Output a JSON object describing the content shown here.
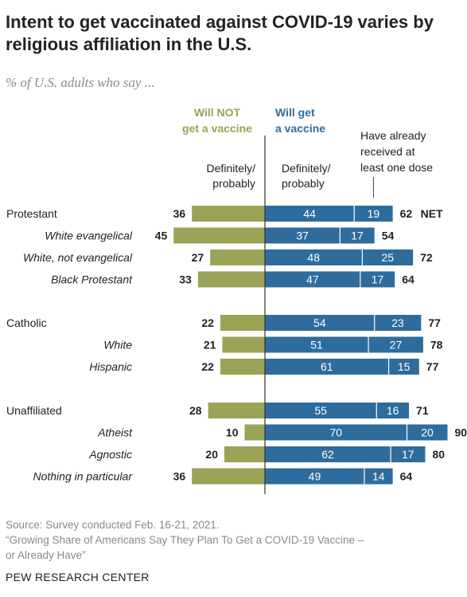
{
  "title": "Intent to get vaccinated against COVID-19 varies by religious affiliation in the U.S.",
  "subtitle": "% of U.S. adults who say ...",
  "chart_data": {
    "type": "bar",
    "headers": {
      "will_not_line1": "Will NOT",
      "will_not_line2": "get a vaccine",
      "will_get_line1": "Will get",
      "will_get_line2": "a vaccine",
      "received_line1": "Have already",
      "received_line2": "received at",
      "received_line3": "least one dose",
      "def_left_line1": "Definitely/",
      "def_left_line2": "probably",
      "def_right_line1": "Definitely/",
      "def_right_line2": "probably",
      "net_label": "NET"
    },
    "colors": {
      "will_not": "#9aa356",
      "will_get": "#2e6c9d",
      "already": "#2e6c9d"
    },
    "series": [
      {
        "key": "will_not"
      },
      {
        "key": "will_get"
      },
      {
        "key": "already"
      },
      {
        "key": "net"
      }
    ],
    "groups": [
      {
        "rows": [
          {
            "label": "Protestant",
            "italic": false,
            "will_not": 36,
            "will_get": 44,
            "already": 19,
            "net": 62
          },
          {
            "label": "White evangelical",
            "italic": true,
            "will_not": 45,
            "will_get": 37,
            "already": 17,
            "net": 54
          },
          {
            "label": "White, not evangelical",
            "italic": true,
            "will_not": 27,
            "will_get": 48,
            "already": 25,
            "net": 72
          },
          {
            "label": "Black Protestant",
            "italic": true,
            "will_not": 33,
            "will_get": 47,
            "already": 17,
            "net": 64
          }
        ]
      },
      {
        "rows": [
          {
            "label": "Catholic",
            "italic": false,
            "will_not": 22,
            "will_get": 54,
            "already": 23,
            "net": 77
          },
          {
            "label": "White",
            "italic": true,
            "will_not": 21,
            "will_get": 51,
            "already": 27,
            "net": 78
          },
          {
            "label": "Hispanic",
            "italic": true,
            "will_not": 22,
            "will_get": 61,
            "already": 15,
            "net": 77
          }
        ]
      },
      {
        "rows": [
          {
            "label": "Unaffiliated",
            "italic": false,
            "will_not": 28,
            "will_get": 55,
            "already": 16,
            "net": 71
          },
          {
            "label": "Atheist",
            "italic": true,
            "will_not": 10,
            "will_get": 70,
            "already": 20,
            "net": 90
          },
          {
            "label": "Agnostic",
            "italic": true,
            "will_not": 20,
            "will_get": 62,
            "already": 17,
            "net": 80
          },
          {
            "label": "Nothing in particular",
            "italic": true,
            "will_not": 36,
            "will_get": 49,
            "already": 14,
            "net": 64
          }
        ]
      }
    ]
  },
  "footer": {
    "source": "Source: Survey conducted Feb. 16-21, 2021.",
    "note_line1": "“Growing Share of Americans Say They Plan To Get a COVID-19 Vaccine –",
    "note_line2": "or Already Have”",
    "brand": "PEW RESEARCH CENTER"
  }
}
